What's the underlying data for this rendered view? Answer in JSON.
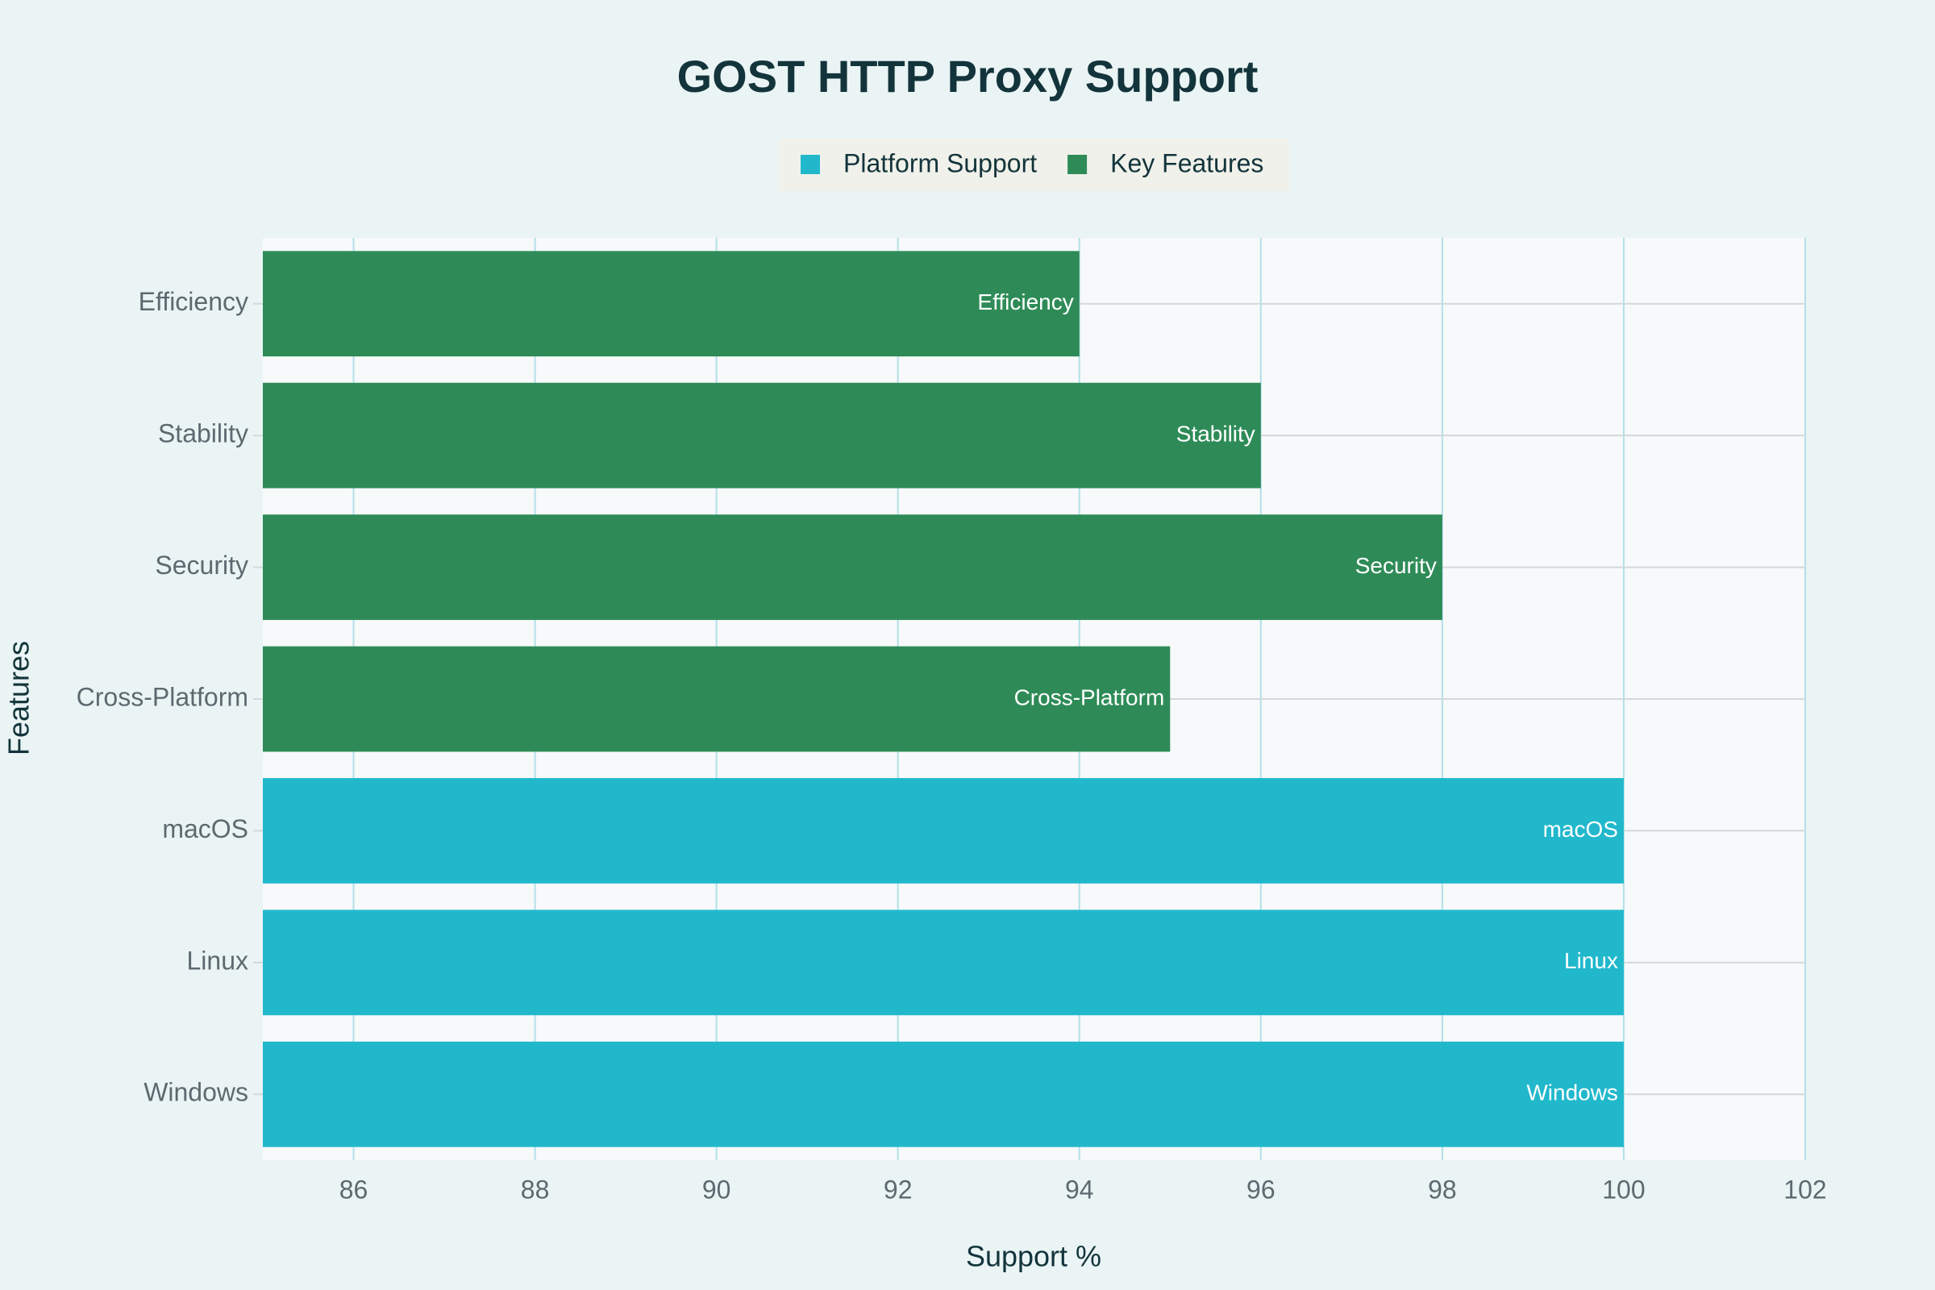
{
  "chart_data": {
    "type": "hbar",
    "title": "GOST HTTP Proxy Support",
    "categories": [
      "Windows",
      "Linux",
      "macOS",
      "Cross-Platform",
      "Security",
      "Stability",
      "Efficiency"
    ],
    "series": [
      {
        "name": "Platform Support",
        "color": "#21b8cc",
        "values": [
          100,
          100,
          100,
          null,
          null,
          null,
          null
        ]
      },
      {
        "name": "Key Features",
        "color": "#2e8b57",
        "values": [
          null,
          null,
          null,
          95,
          98,
          96,
          94
        ]
      }
    ],
    "xlabel": "Support %",
    "ylabel": "Features",
    "xlim": [
      85,
      102
    ],
    "xticks": [
      86,
      88,
      90,
      92,
      94,
      96,
      98,
      100,
      102
    ],
    "grid": true,
    "legend": "top"
  }
}
